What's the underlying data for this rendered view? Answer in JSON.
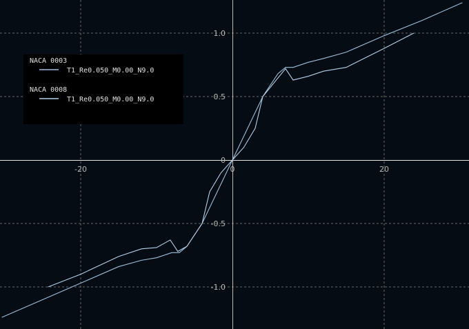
{
  "chart_data": {
    "type": "line",
    "title": "",
    "xlabel": "",
    "ylabel": "",
    "xlim": [
      -30.6,
      31.2
    ],
    "ylim": [
      -1.26,
      1.26
    ],
    "grid": true,
    "legend_placement": "top-left",
    "x_ticks": [
      -20,
      0,
      20
    ],
    "x_tick_labels": [
      "-20",
      "0",
      "20"
    ],
    "y_ticks": [
      -1.0,
      -0.5,
      0,
      0.5,
      1.0
    ],
    "y_tick_labels": [
      "-1.0",
      "-0.5",
      "0",
      "0.5",
      "1.0"
    ],
    "legend": [
      {
        "group": "NACA 0003",
        "name": "T1_Re0.050_M0.00_N9.0"
      },
      {
        "group": "NACA 0008",
        "name": "T1_Re0.050_M0.00_N9.0"
      }
    ],
    "series": [
      {
        "color": "#9cc0de",
        "x": [
          -30.4,
          -25,
          -20,
          -15,
          -12,
          -10,
          -8,
          -7,
          -6,
          -4,
          -2,
          0,
          2,
          4,
          6,
          7,
          8,
          10,
          12,
          15,
          20,
          25,
          30.3
        ],
        "y": [
          -1.24,
          -1.1,
          -0.97,
          -0.84,
          -0.79,
          -0.77,
          -0.73,
          -0.73,
          -0.68,
          -0.5,
          -0.25,
          0,
          0.25,
          0.5,
          0.68,
          0.73,
          0.73,
          0.77,
          0.8,
          0.85,
          0.98,
          1.1,
          1.24
        ]
      },
      {
        "color": "#b3d1ea",
        "x": [
          -24.3,
          -20,
          -15,
          -12,
          -10,
          -8.2,
          -7.2,
          -6,
          -4,
          -3,
          -1.5,
          0,
          1.5,
          3,
          4,
          7,
          8,
          10,
          12,
          15,
          20,
          23.9
        ],
        "y": [
          -1.0,
          -0.9,
          -0.76,
          -0.7,
          -0.69,
          -0.63,
          -0.72,
          -0.68,
          -0.5,
          -0.25,
          -0.1,
          0,
          0.1,
          0.25,
          0.5,
          0.72,
          0.63,
          0.66,
          0.7,
          0.73,
          0.88,
          1.0
        ]
      }
    ],
    "colors": {
      "background": "#050c13",
      "grid": "#6a6a6a",
      "axis": "#e8e8e8",
      "legend_bg": "#000000"
    }
  }
}
